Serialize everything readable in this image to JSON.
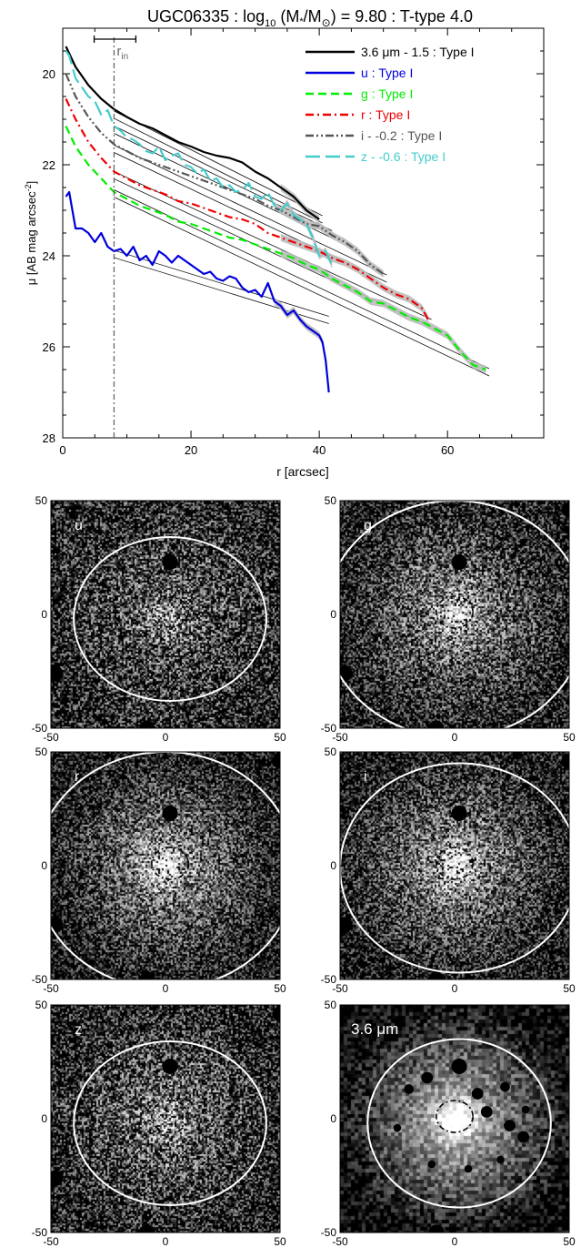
{
  "chart_data": [
    {
      "type": "line",
      "title_parts": {
        "lead": "UGC06335 : log",
        "sub": "10",
        "mid": " (M",
        "star": "*",
        "slash": "/M",
        "sun": "⊙",
        "tail": ") = 9.80 : T-type 4.0"
      },
      "xlabel": "r [arcsec]",
      "ylabel_parts": {
        "main": "μ [AB mag arcsec",
        "sup": "-2",
        "end": "]"
      },
      "xlim": [
        0,
        75
      ],
      "ylim": [
        28,
        19
      ],
      "y_inverted": true,
      "xticks": [
        0,
        20,
        40,
        60
      ],
      "yticks": [
        20,
        22,
        24,
        26,
        28
      ],
      "r_in": {
        "value": 8.0,
        "label": "r",
        "sub": "in",
        "err": [
          4.9,
          11.4
        ]
      },
      "legend_placement": "top-right",
      "series": [
        {
          "name": "3.6 μm - 1.5 : Type I",
          "color": "#000000",
          "dash": "solid",
          "x": [
            0.5,
            2,
            4,
            6,
            8,
            10,
            12,
            14,
            16,
            18,
            20,
            22,
            24,
            26,
            28,
            30,
            32,
            34,
            36,
            38,
            40
          ],
          "y": [
            19.4,
            19.85,
            20.25,
            20.55,
            20.78,
            20.95,
            21.1,
            21.2,
            21.35,
            21.5,
            21.6,
            21.72,
            21.8,
            21.85,
            21.95,
            22.15,
            22.3,
            22.5,
            22.7,
            23.0,
            23.2
          ],
          "fit": [
            {
              "x": [
                8,
                40.5
              ],
              "y": [
                20.82,
                23.12
              ]
            },
            {
              "x": [
                8,
                40.5
              ],
              "y": [
                20.98,
                23.28
              ]
            }
          ]
        },
        {
          "name": "u : Type I",
          "color": "#0000dd",
          "dash": "solid",
          "x": [
            0.5,
            1,
            2,
            3,
            4,
            5,
            6,
            7,
            8,
            9,
            10,
            11,
            12,
            13,
            14,
            15,
            16,
            17,
            18,
            19,
            20,
            21,
            22,
            23,
            24,
            25,
            26,
            27,
            28,
            29,
            30,
            31,
            32,
            33,
            34,
            35,
            36,
            37,
            38,
            39,
            40,
            40.5,
            41,
            41.5
          ],
          "y": [
            22.7,
            22.6,
            23.4,
            23.4,
            23.5,
            23.7,
            23.5,
            23.8,
            23.9,
            23.85,
            24.0,
            23.8,
            24.1,
            24.0,
            24.2,
            23.9,
            24.0,
            24.15,
            24.0,
            24.1,
            24.2,
            24.3,
            24.4,
            24.35,
            24.5,
            24.55,
            24.45,
            24.5,
            24.7,
            24.8,
            24.75,
            24.9,
            24.6,
            25.0,
            25.1,
            25.3,
            25.2,
            25.4,
            25.55,
            25.65,
            25.75,
            25.9,
            26.3,
            27.0
          ],
          "fit": [
            {
              "x": [
                8,
                41.5
              ],
              "y": [
                23.88,
                25.33
              ]
            },
            {
              "x": [
                8,
                41.5
              ],
              "y": [
                24.04,
                25.49
              ]
            }
          ]
        },
        {
          "name": "g : Type I",
          "color": "#00ee00",
          "dash": "dashed",
          "x": [
            0.5,
            2,
            4,
            6,
            8,
            10,
            12,
            14,
            16,
            18,
            20,
            22,
            24,
            26,
            28,
            30,
            32,
            34,
            36,
            38,
            40,
            42,
            44,
            46,
            48,
            50,
            52,
            54,
            56,
            58,
            60,
            62,
            64,
            66
          ],
          "y": [
            21.15,
            21.6,
            22.0,
            22.3,
            22.6,
            22.75,
            22.9,
            23.0,
            23.1,
            23.25,
            23.3,
            23.4,
            23.5,
            23.6,
            23.65,
            23.75,
            23.85,
            23.95,
            24.05,
            24.2,
            24.3,
            24.5,
            24.65,
            24.8,
            25.0,
            25.05,
            25.2,
            25.35,
            25.45,
            25.6,
            25.75,
            26.1,
            26.4,
            26.5
          ],
          "fit": [
            {
              "x": [
                8,
                66.5
              ],
              "y": [
                22.55,
                26.48
              ]
            },
            {
              "x": [
                8,
                66.5
              ],
              "y": [
                22.71,
                26.64
              ]
            }
          ]
        },
        {
          "name": "r : Type I",
          "color": "#ee0000",
          "dash": "dashdot",
          "x": [
            0.5,
            2,
            4,
            6,
            8,
            10,
            12,
            14,
            16,
            18,
            20,
            22,
            24,
            26,
            28,
            30,
            32,
            34,
            36,
            38,
            40,
            42,
            44,
            46,
            48,
            50,
            52,
            54,
            56,
            57
          ],
          "y": [
            20.55,
            21.0,
            21.5,
            21.85,
            22.15,
            22.3,
            22.45,
            22.55,
            22.65,
            22.8,
            22.85,
            22.95,
            23.05,
            23.15,
            23.2,
            23.3,
            23.5,
            23.6,
            23.7,
            23.8,
            23.9,
            24.05,
            24.15,
            24.3,
            24.5,
            24.7,
            24.85,
            24.95,
            25.15,
            25.4
          ],
          "fit": [
            {
              "x": [
                8,
                57.5
              ],
              "y": [
                22.15,
                25.4
              ]
            },
            {
              "x": [
                8,
                57.5
              ],
              "y": [
                22.31,
                25.56
              ]
            }
          ]
        },
        {
          "name": "i - -0.2 : Type I",
          "color": "#555555",
          "dash": "dashdotdot",
          "x": [
            0.5,
            2,
            4,
            6,
            8,
            10,
            12,
            14,
            16,
            18,
            20,
            22,
            24,
            26,
            28,
            30,
            32,
            34,
            36,
            38,
            40,
            42,
            44,
            46,
            48,
            50
          ],
          "y": [
            20.0,
            20.5,
            20.95,
            21.3,
            21.55,
            21.7,
            21.85,
            21.95,
            22.05,
            22.15,
            22.25,
            22.35,
            22.45,
            22.55,
            22.65,
            22.75,
            22.9,
            23.0,
            23.15,
            23.3,
            23.35,
            23.55,
            23.7,
            23.9,
            24.2,
            24.4
          ],
          "fit": [
            {
              "x": [
                8,
                50.5
              ],
              "y": [
                21.57,
                24.42
              ]
            },
            {
              "x": [
                8,
                50.5
              ],
              "y": [
                21.73,
                24.58
              ]
            }
          ]
        },
        {
          "name": "z - -0.6 : Type I",
          "color": "#44cccc",
          "dash": "longdash",
          "x": [
            0.5,
            1,
            2,
            3,
            4,
            5,
            6,
            7,
            8,
            9,
            10,
            11,
            12,
            13,
            14,
            15,
            16,
            17,
            18,
            19,
            20,
            21,
            22,
            23,
            24,
            25,
            26,
            27,
            28,
            29,
            30,
            31,
            32,
            33,
            34,
            35,
            36,
            37,
            38,
            39,
            40,
            41,
            42
          ],
          "y": [
            19.5,
            19.6,
            20.1,
            20.3,
            20.5,
            20.6,
            20.9,
            20.8,
            21.15,
            21.25,
            21.4,
            21.45,
            21.55,
            21.7,
            21.75,
            21.6,
            21.9,
            21.8,
            21.75,
            22.0,
            22.05,
            22.2,
            22.1,
            22.35,
            22.3,
            22.5,
            22.45,
            22.6,
            22.55,
            22.4,
            22.7,
            22.75,
            22.6,
            22.9,
            23.0,
            22.85,
            23.1,
            23.2,
            23.3,
            23.6,
            24.0,
            23.9,
            24.2
          ],
          "fit": [
            {
              "x": [
                8,
                42
              ],
              "y": [
                21.15,
                23.45
              ]
            },
            {
              "x": [
                8,
                42
              ],
              "y": [
                21.31,
                23.61
              ]
            }
          ]
        }
      ]
    },
    {
      "type": "image-grid",
      "axis_range": [
        -50,
        50
      ],
      "ticks": [
        -50,
        0,
        50
      ],
      "panels": [
        {
          "label": "u",
          "noise": 0.62,
          "glow": 0.35,
          "ellipse": {
            "cx": 2,
            "cy": -2,
            "rx": 42,
            "ry": 36
          },
          "inner": {
            "cx": 2,
            "cy": 1,
            "rx": 8,
            "ry": 6.5
          },
          "masks": [
            {
              "x": 2,
              "y": 23,
              "r": 4
            },
            {
              "x": -48,
              "y": -26,
              "r": 4
            },
            {
              "x": -8,
              "y": -50,
              "r": 4
            }
          ]
        },
        {
          "label": "g",
          "noise": 0.5,
          "glow": 0.55,
          "ellipse": {
            "cx": 0,
            "cy": -2,
            "rx": 57,
            "ry": 52
          },
          "inner": {
            "cx": 0,
            "cy": 1,
            "rx": 8,
            "ry": 7
          },
          "masks": [
            {
              "x": 2,
              "y": 23,
              "r": 4
            },
            {
              "x": -48,
              "y": -26,
              "r": 4
            },
            {
              "x": -8,
              "y": -50,
              "r": 4
            },
            {
              "x": 50,
              "y": 46,
              "r": 4
            }
          ]
        },
        {
          "label": "r",
          "noise": 0.45,
          "glow": 0.6,
          "ellipse": {
            "cx": 0,
            "cy": -2,
            "rx": 57,
            "ry": 52
          },
          "inner": {
            "cx": 2,
            "cy": 1,
            "rx": 8,
            "ry": 7
          },
          "masks": [
            {
              "x": 2,
              "y": 23,
              "r": 4
            },
            {
              "x": -48,
              "y": -26,
              "r": 4
            },
            {
              "x": -8,
              "y": -50,
              "r": 4
            },
            {
              "x": 50,
              "y": 46,
              "r": 4
            }
          ]
        },
        {
          "label": "i",
          "noise": 0.45,
          "glow": 0.6,
          "ellipse": {
            "cx": 2,
            "cy": -1,
            "rx": 52,
            "ry": 46
          },
          "inner": {
            "cx": 0,
            "cy": 1,
            "rx": 8,
            "ry": 7
          },
          "masks": [
            {
              "x": 2,
              "y": 23,
              "r": 4
            },
            {
              "x": -48,
              "y": -26,
              "r": 4
            },
            {
              "x": -8,
              "y": -50,
              "r": 4
            },
            {
              "x": 50,
              "y": 46,
              "r": 4
            }
          ]
        },
        {
          "label": "z",
          "noise": 0.6,
          "glow": 0.4,
          "ellipse": {
            "cx": 2,
            "cy": -2,
            "rx": 42,
            "ry": 36
          },
          "inner": {
            "cx": 2,
            "cy": 1,
            "rx": 8,
            "ry": 7
          },
          "masks": [
            {
              "x": 2,
              "y": 23,
              "r": 4
            },
            {
              "x": -48,
              "y": -26,
              "r": 4
            },
            {
              "x": -8,
              "y": -50,
              "r": 4
            },
            {
              "x": 50,
              "y": 46,
              "r": 4
            }
          ]
        },
        {
          "label": "3.6 μm",
          "noise": 0.2,
          "glow": 0.75,
          "coarse": true,
          "ellipse": {
            "cx": 2,
            "cy": -2,
            "rx": 40,
            "ry": 37
          },
          "inner": {
            "cx": 0,
            "cy": 1,
            "rx": 8,
            "ry": 7
          },
          "masks": [
            {
              "x": 2,
              "y": 23,
              "r": 4
            },
            {
              "x": -8,
              "y": -50,
              "r": 4
            },
            {
              "x": -12,
              "y": 18,
              "r": 3
            },
            {
              "x": -20,
              "y": 13,
              "r": 2.5
            },
            {
              "x": 10,
              "y": 11,
              "r": 3
            },
            {
              "x": 22,
              "y": 14,
              "r": 2.5
            },
            {
              "x": 14,
              "y": 3,
              "r": 3
            },
            {
              "x": 24,
              "y": -3,
              "r": 3
            },
            {
              "x": 31,
              "y": 4,
              "r": 2
            },
            {
              "x": 30,
              "y": -8,
              "r": 3
            },
            {
              "x": -25,
              "y": -4,
              "r": 2
            },
            {
              "x": -10,
              "y": -20,
              "r": 2
            },
            {
              "x": 20,
              "y": -18,
              "r": 2
            },
            {
              "x": 6,
              "y": -22,
              "r": 2
            }
          ]
        }
      ]
    }
  ]
}
